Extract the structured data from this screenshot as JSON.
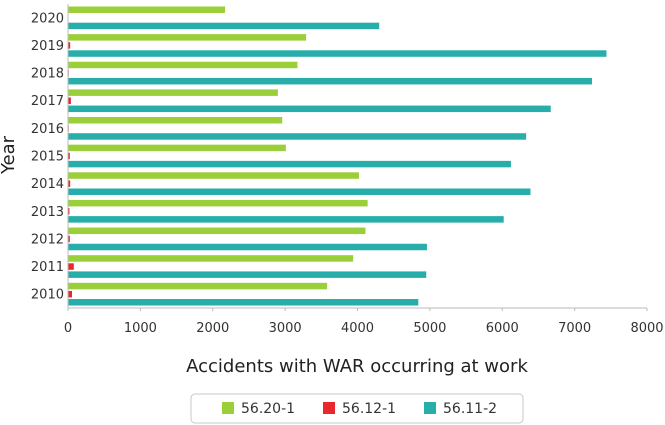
{
  "chart_data": {
    "type": "bar",
    "orientation": "horizontal",
    "title": "",
    "xlabel": "Accidents with WAR occurring at work",
    "ylabel": "Year",
    "xlim": [
      0,
      8000
    ],
    "x_ticks": [
      "0",
      "1000",
      "2000",
      "3000",
      "4000",
      "5000",
      "6000",
      "7000",
      "8000"
    ],
    "categories": [
      "2010",
      "2011",
      "2012",
      "2013",
      "2014",
      "2015",
      "2016",
      "2017",
      "2018",
      "2019",
      "2020"
    ],
    "series": [
      {
        "name": "56.20-1",
        "color": "#9bcf3a",
        "values": [
          3580,
          3940,
          4110,
          4140,
          4020,
          3010,
          2960,
          2900,
          3170,
          3290,
          2170
        ]
      },
      {
        "name": "56.12-1",
        "color": "#e8262c",
        "values": [
          55,
          80,
          25,
          20,
          30,
          25,
          10,
          40,
          10,
          30,
          0
        ]
      },
      {
        "name": "56.11-2",
        "color": "#27aeaa",
        "values": [
          4840,
          4950,
          4960,
          6020,
          6390,
          6120,
          6330,
          6670,
          7240,
          7440,
          4300
        ]
      }
    ],
    "grid": false,
    "legend_position": "bottom"
  }
}
